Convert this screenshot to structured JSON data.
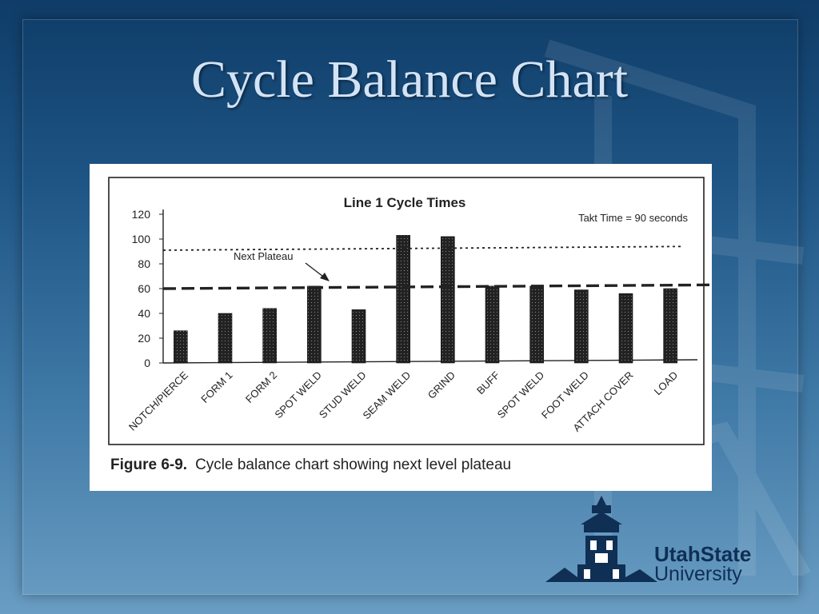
{
  "slide": {
    "title": "Cycle Balance Chart"
  },
  "figure": {
    "caption_label": "Figure 6-9.",
    "caption_text": "Cycle balance chart showing next level plateau"
  },
  "logo": {
    "line1": "UtahState",
    "line2": "University"
  },
  "colors": {
    "background_top": "#0f3c68",
    "background_bottom": "#6a9dc3",
    "title": "#d3e3f6",
    "bar": "#222222",
    "logo": "#0f2f55"
  },
  "chart_data": {
    "type": "bar",
    "title": "Line 1 Cycle Times",
    "categories": [
      "NOTCH/PIERCE",
      "FORM 1",
      "FORM 2",
      "SPOT WELD",
      "STUD WELD",
      "SEAM WELD",
      "GRIND",
      "BUFF",
      "SPOT WELD",
      "FOOT WELD",
      "ATTACH COVER",
      "LOAD"
    ],
    "values": [
      26,
      40,
      44,
      62,
      43,
      103,
      102,
      62,
      62,
      59,
      56,
      60
    ],
    "ylim": [
      0,
      120
    ],
    "yticks": [
      0,
      20,
      40,
      60,
      80,
      100,
      120
    ],
    "xlabel": "",
    "ylabel": "",
    "grid": false,
    "reference_lines": [
      {
        "label": "Takt Time = 90 seconds",
        "start": 91,
        "end": 94,
        "style": "dotted"
      },
      {
        "label": "Next Plateau",
        "start": 60,
        "end": 63,
        "style": "dashed"
      }
    ]
  }
}
